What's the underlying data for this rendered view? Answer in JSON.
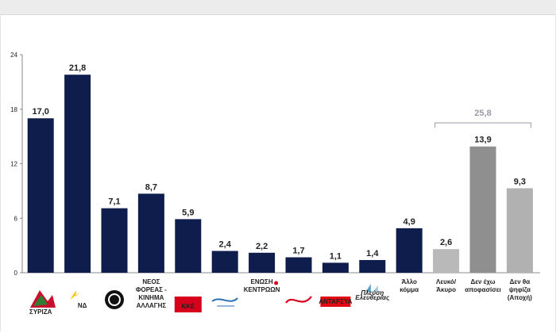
{
  "chart_data": {
    "type": "bar",
    "categories": [
      "ΣΥΡΙΖΑ",
      "ΝΔ",
      "",
      "ΝΕΟΣ ΦΟΡΕΑΣ - ΚΙΝΗΜΑ ΑΛΛΑΓΗΣ",
      "ΚΚΕ",
      "",
      "ΕΝΩΣΗ ΚΕΝΤΡΩΩΝ",
      "",
      "ΑΝΤΑΡΣΥΑ",
      "Πλεύση Ελευθερίας",
      "Άλλο κόμμα",
      "Λευκό/ Άκυρο",
      "Δεν έχω αποφασίσει",
      "Δεν θα ψηφίζα (Αποχή)"
    ],
    "category_lines": [
      [
        "ΣΥΡΙΖΑ"
      ],
      [
        "ΝΔ"
      ],
      [],
      [
        "ΝΕΟΣ",
        "ΦΟΡΕΑΣ -",
        "ΚΙΝΗΜΑ",
        "ΑΛΛΑΓΗΣ"
      ],
      [
        "ΚΚΕ"
      ],
      [],
      [
        "ΕΝΩΣΗ",
        "ΚΕΝΤΡΩΩΝ"
      ],
      [],
      [
        "ΑΝΤΑΡΣΥΑ"
      ],
      [
        "Πλεύση",
        "Ελευθερίας"
      ],
      [
        "Άλλο",
        "κόμμα"
      ],
      [
        "Λευκό/",
        "Άκυρο"
      ],
      [
        "Δεν έχω",
        "αποφασίσει"
      ],
      [
        "Δεν θα",
        "ψηφίζα",
        "(Αποχή)"
      ]
    ],
    "values": [
      17.0,
      21.8,
      7.1,
      8.7,
      5.9,
      2.4,
      2.2,
      1.7,
      1.1,
      1.4,
      4.9,
      2.6,
      13.9,
      9.3
    ],
    "value_labels": [
      "17,0",
      "21,8",
      "7,1",
      "8,7",
      "5,9",
      "2,4",
      "2,2",
      "1,7",
      "1,1",
      "1,4",
      "4,9",
      "2,6",
      "13,9",
      "9,3"
    ],
    "bar_colors": [
      "#0f1d4d",
      "#0f1d4d",
      "#0f1d4d",
      "#0f1d4d",
      "#0f1d4d",
      "#0f1d4d",
      "#0f1d4d",
      "#0f1d4d",
      "#0f1d4d",
      "#0f1d4d",
      "#0f1d4d",
      "#b9b9b9",
      "#8f8f8f",
      "#b1b1b1"
    ],
    "yticks": [
      "0",
      "6",
      "12",
      "18",
      "24"
    ],
    "ylim": [
      0,
      24
    ],
    "grid": false,
    "bracket": {
      "label": "25,8",
      "from_index": 11,
      "to_index": 13
    },
    "title": "",
    "xlabel": "",
    "ylabel": ""
  },
  "logos": {
    "syriza_color": "#c8102e",
    "nd_color": "#1d4fa1",
    "kke_color": "#d6001c",
    "antarsya_color": "#e30613",
    "plefsi_color": "#4aa0c9"
  }
}
